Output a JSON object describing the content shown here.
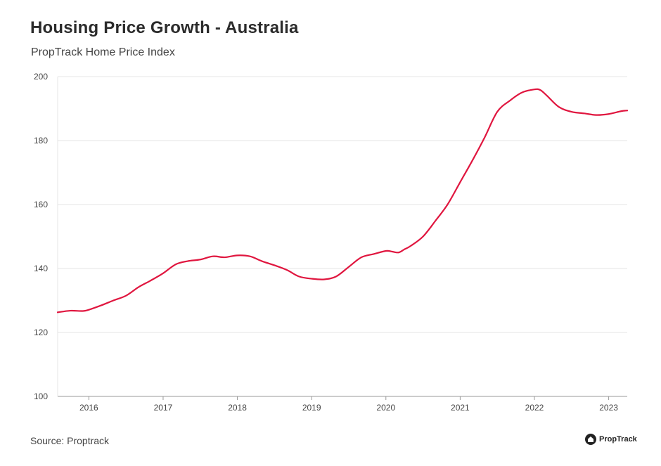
{
  "header": {
    "title": "Housing Price Growth - Australia",
    "subtitle": "PropTrack Home Price Index"
  },
  "footer": {
    "source": "Source: Proptrack",
    "brand": "PropTrack"
  },
  "colors": {
    "line": "#e0163f",
    "grid": "#e6e6e6",
    "axis": "#999999"
  },
  "chart_data": {
    "type": "line",
    "title": "Housing Price Growth - Australia",
    "subtitle": "PropTrack Home Price Index",
    "xlabel": "",
    "ylabel": "",
    "ylim": [
      100,
      200
    ],
    "xlim": [
      2015.58,
      2023.25
    ],
    "yticks": [
      100,
      120,
      140,
      160,
      180,
      200
    ],
    "xticks": [
      2016,
      2017,
      2018,
      2019,
      2020,
      2021,
      2022,
      2023
    ],
    "grid": true,
    "series": [
      {
        "x": [
          2015.58,
          2015.75,
          2015.92,
          2016.0,
          2016.17,
          2016.33,
          2016.5,
          2016.67,
          2016.83,
          2017.0,
          2017.17,
          2017.33,
          2017.5,
          2017.67,
          2017.83,
          2018.0,
          2018.17,
          2018.33,
          2018.5,
          2018.67,
          2018.83,
          2019.0,
          2019.17,
          2019.33,
          2019.5,
          2019.67,
          2019.83,
          2020.0,
          2020.08,
          2020.17,
          2020.25,
          2020.33,
          2020.5,
          2020.67,
          2020.83,
          2021.0,
          2021.17,
          2021.33,
          2021.5,
          2021.67,
          2021.83,
          2022.0,
          2022.08,
          2022.17,
          2022.33,
          2022.5,
          2022.67,
          2022.83,
          2023.0,
          2023.17,
          2023.25
        ],
        "y": [
          126.3,
          126.8,
          126.7,
          127.1,
          128.5,
          130.0,
          131.5,
          134.2,
          136.2,
          138.5,
          141.3,
          142.3,
          142.8,
          143.8,
          143.5,
          144.1,
          143.8,
          142.3,
          141.0,
          139.5,
          137.5,
          136.8,
          136.6,
          137.5,
          140.5,
          143.5,
          144.5,
          145.5,
          145.3,
          145.0,
          146.0,
          147.0,
          150.0,
          155.0,
          160.0,
          167.0,
          174.0,
          181.0,
          189.0,
          192.5,
          195.0,
          196.0,
          195.8,
          194.0,
          190.5,
          189.0,
          188.5,
          188.0,
          188.3,
          189.2,
          189.4
        ]
      }
    ]
  }
}
